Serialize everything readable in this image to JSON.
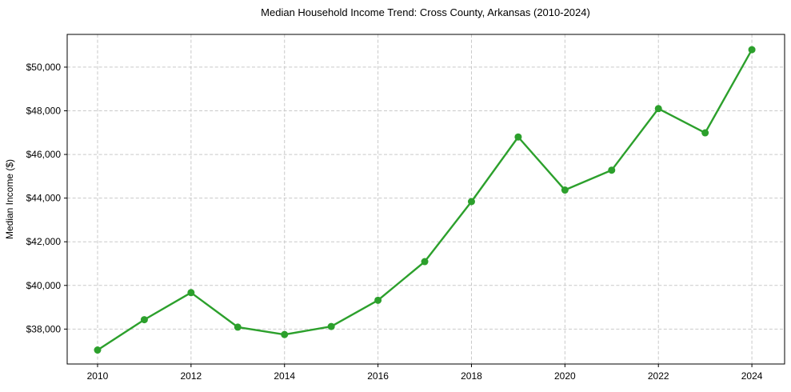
{
  "figure": {
    "background_color": "#ffffff"
  },
  "chart_data": {
    "type": "line",
    "title": "Median Household Income Trend: Cross County, Arkansas (2010-2024)",
    "xlabel": "",
    "ylabel": "Median Income ($)",
    "series": [
      {
        "name": "Median Household Income",
        "x": [
          2010,
          2011,
          2012,
          2013,
          2014,
          2015,
          2016,
          2017,
          2018,
          2019,
          2020,
          2021,
          2022,
          2023,
          2024
        ],
        "values": [
          37040,
          38430,
          39670,
          38090,
          37750,
          38120,
          39320,
          41090,
          43840,
          46800,
          44370,
          45280,
          48100,
          46990,
          50800
        ]
      }
    ],
    "x": [
      2010,
      2011,
      2012,
      2013,
      2014,
      2015,
      2016,
      2017,
      2018,
      2019,
      2020,
      2021,
      2022,
      2023,
      2024
    ],
    "values": [
      37040,
      38430,
      39670,
      38090,
      37750,
      38120,
      39320,
      41090,
      43840,
      46800,
      44370,
      45280,
      48100,
      46990,
      50800
    ],
    "xlim": [
      2009.35,
      2024.7
    ],
    "ylim": [
      36400,
      51500
    ],
    "x_ticks": [
      2010,
      2012,
      2014,
      2016,
      2018,
      2020,
      2022,
      2024
    ],
    "x_tick_labels": [
      "2010",
      "2012",
      "2014",
      "2016",
      "2018",
      "2020",
      "2022",
      "2024"
    ],
    "y_ticks": [
      38000,
      40000,
      42000,
      44000,
      46000,
      48000,
      50000
    ],
    "y_tick_labels": [
      "$38,000",
      "$40,000",
      "$42,000",
      "$44,000",
      "$46,000",
      "$48,000",
      "$50,000"
    ],
    "grid": true,
    "legend": "none",
    "line_color": "#2ca02c",
    "marker": "o",
    "marker_radius": 4.5,
    "line_width": 2.4,
    "grid_color": "#c9c9c9",
    "axis_color": "#000000",
    "text_color": "#000000"
  }
}
